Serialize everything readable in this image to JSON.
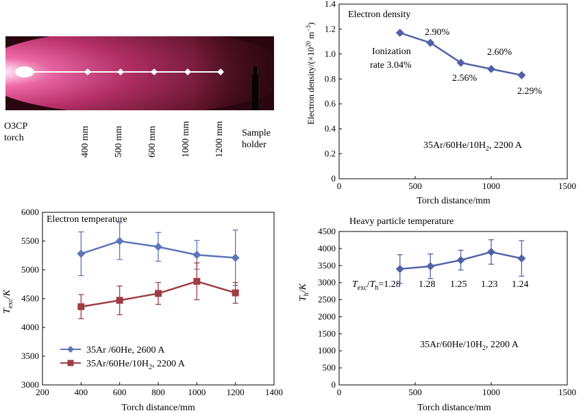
{
  "torch_panel": {
    "torch_label_line1": "O3CP",
    "torch_label_line2": "torch",
    "holder_label_line1": "Sample",
    "holder_label_line2": "holder",
    "distance_labels": [
      "400 mm",
      "500 mm",
      "600 mm",
      "1000 mm",
      "1200 mm"
    ],
    "colors": {
      "plasma": "#d1407f",
      "background": "#2a0710",
      "core": "#ffffff"
    }
  },
  "chart_data": [
    {
      "id": "electron-density",
      "type": "line",
      "title": "Electron density",
      "ylabel_text": "Electron density/(×10",
      "ylabel_sup1": "20",
      "ylabel_mid": " m",
      "ylabel_sup2": "−3",
      "ylabel_end": ")",
      "xlabel": "Torch distance/mm",
      "xlim": [
        0,
        1500
      ],
      "ylim": [
        0,
        1.4
      ],
      "xticks": [
        "0",
        "500",
        "1000",
        "1500"
      ],
      "yticks": [
        "0",
        "0.2",
        "0.4",
        "0.6",
        "0.8",
        "1.0",
        "1.2",
        "1.4"
      ],
      "grid": false,
      "series": [
        {
          "x": [
            400,
            600,
            800,
            1000,
            1200
          ],
          "y": [
            1.17,
            1.09,
            0.93,
            0.88,
            0.83
          ],
          "color": "#4f62a8",
          "marker": "diamond"
        }
      ],
      "annotations": [
        "2.90%",
        "2.60%",
        "2.56%",
        "2.29%",
        "Ionization",
        "rate 3.04%"
      ],
      "condition_text": "35Ar/60He/10H",
      "condition_sub": "2",
      "condition_end": ", 2200 A"
    },
    {
      "id": "electron-temperature",
      "type": "line",
      "title": "Electron temperature",
      "ylabel_T": "T",
      "ylabel_sub": "exc",
      "ylabel_end": "/K",
      "xlabel": "Torch distance/mm",
      "xlim": [
        200,
        1400
      ],
      "ylim": [
        3000,
        6000
      ],
      "xticks": [
        "200",
        "400",
        "600",
        "800",
        "1000",
        "1200",
        "1400"
      ],
      "yticks": [
        "3000",
        "3500",
        "4000",
        "4500",
        "5000",
        "5500",
        "6000"
      ],
      "grid": false,
      "legend_position": "bottom-left",
      "series": [
        {
          "legend_text": "35Ar /60He, 2600 A",
          "x": [
            400,
            600,
            800,
            1000,
            1200
          ],
          "y": [
            5280,
            5500,
            5400,
            5260,
            5210
          ],
          "err": [
            380,
            320,
            250,
            250,
            480
          ],
          "color": "#5d74b8",
          "marker": "diamond"
        },
        {
          "legend_text": "35Ar/60He/10H",
          "legend_sub": "2",
          "legend_end": ", 2200 A",
          "x": [
            400,
            600,
            800,
            1000,
            1200
          ],
          "y": [
            4360,
            4470,
            4590,
            4800,
            4600
          ],
          "err": [
            210,
            250,
            190,
            320,
            180
          ],
          "color": "#9e3d44",
          "marker": "square"
        }
      ]
    },
    {
      "id": "heavy-particle-temperature",
      "type": "line",
      "title": "Heavy particle temperature",
      "ylabel_T": "T",
      "ylabel_sub": "h",
      "ylabel_end": "/K",
      "xlabel": "Torch distance/mm",
      "xlim": [
        0,
        1500
      ],
      "ylim": [
        0,
        4500
      ],
      "xticks": [
        "0",
        "500",
        "1000",
        "1500"
      ],
      "yticks": [
        "0",
        "500",
        "1000",
        "1500",
        "2000",
        "2500",
        "3000",
        "3500",
        "4000",
        "4500"
      ],
      "grid": false,
      "series": [
        {
          "x": [
            400,
            600,
            800,
            1000,
            1200
          ],
          "y": [
            3400,
            3480,
            3660,
            3900,
            3710
          ],
          "err": [
            420,
            360,
            290,
            360,
            520
          ],
          "color": "#4f62a8",
          "marker": "diamond"
        }
      ],
      "ratio_T1": "T",
      "ratio_sub1": "exc",
      "ratio_slash": "/",
      "ratio_T2": "T",
      "ratio_sub2": "h",
      "ratio_eq": "=",
      "ratio_values": [
        "1.28",
        "1.28",
        "1.25",
        "1.23",
        "1.24"
      ],
      "condition_text": "35Ar/60He/10H",
      "condition_sub": "2",
      "condition_end": ", 2200 A"
    }
  ]
}
